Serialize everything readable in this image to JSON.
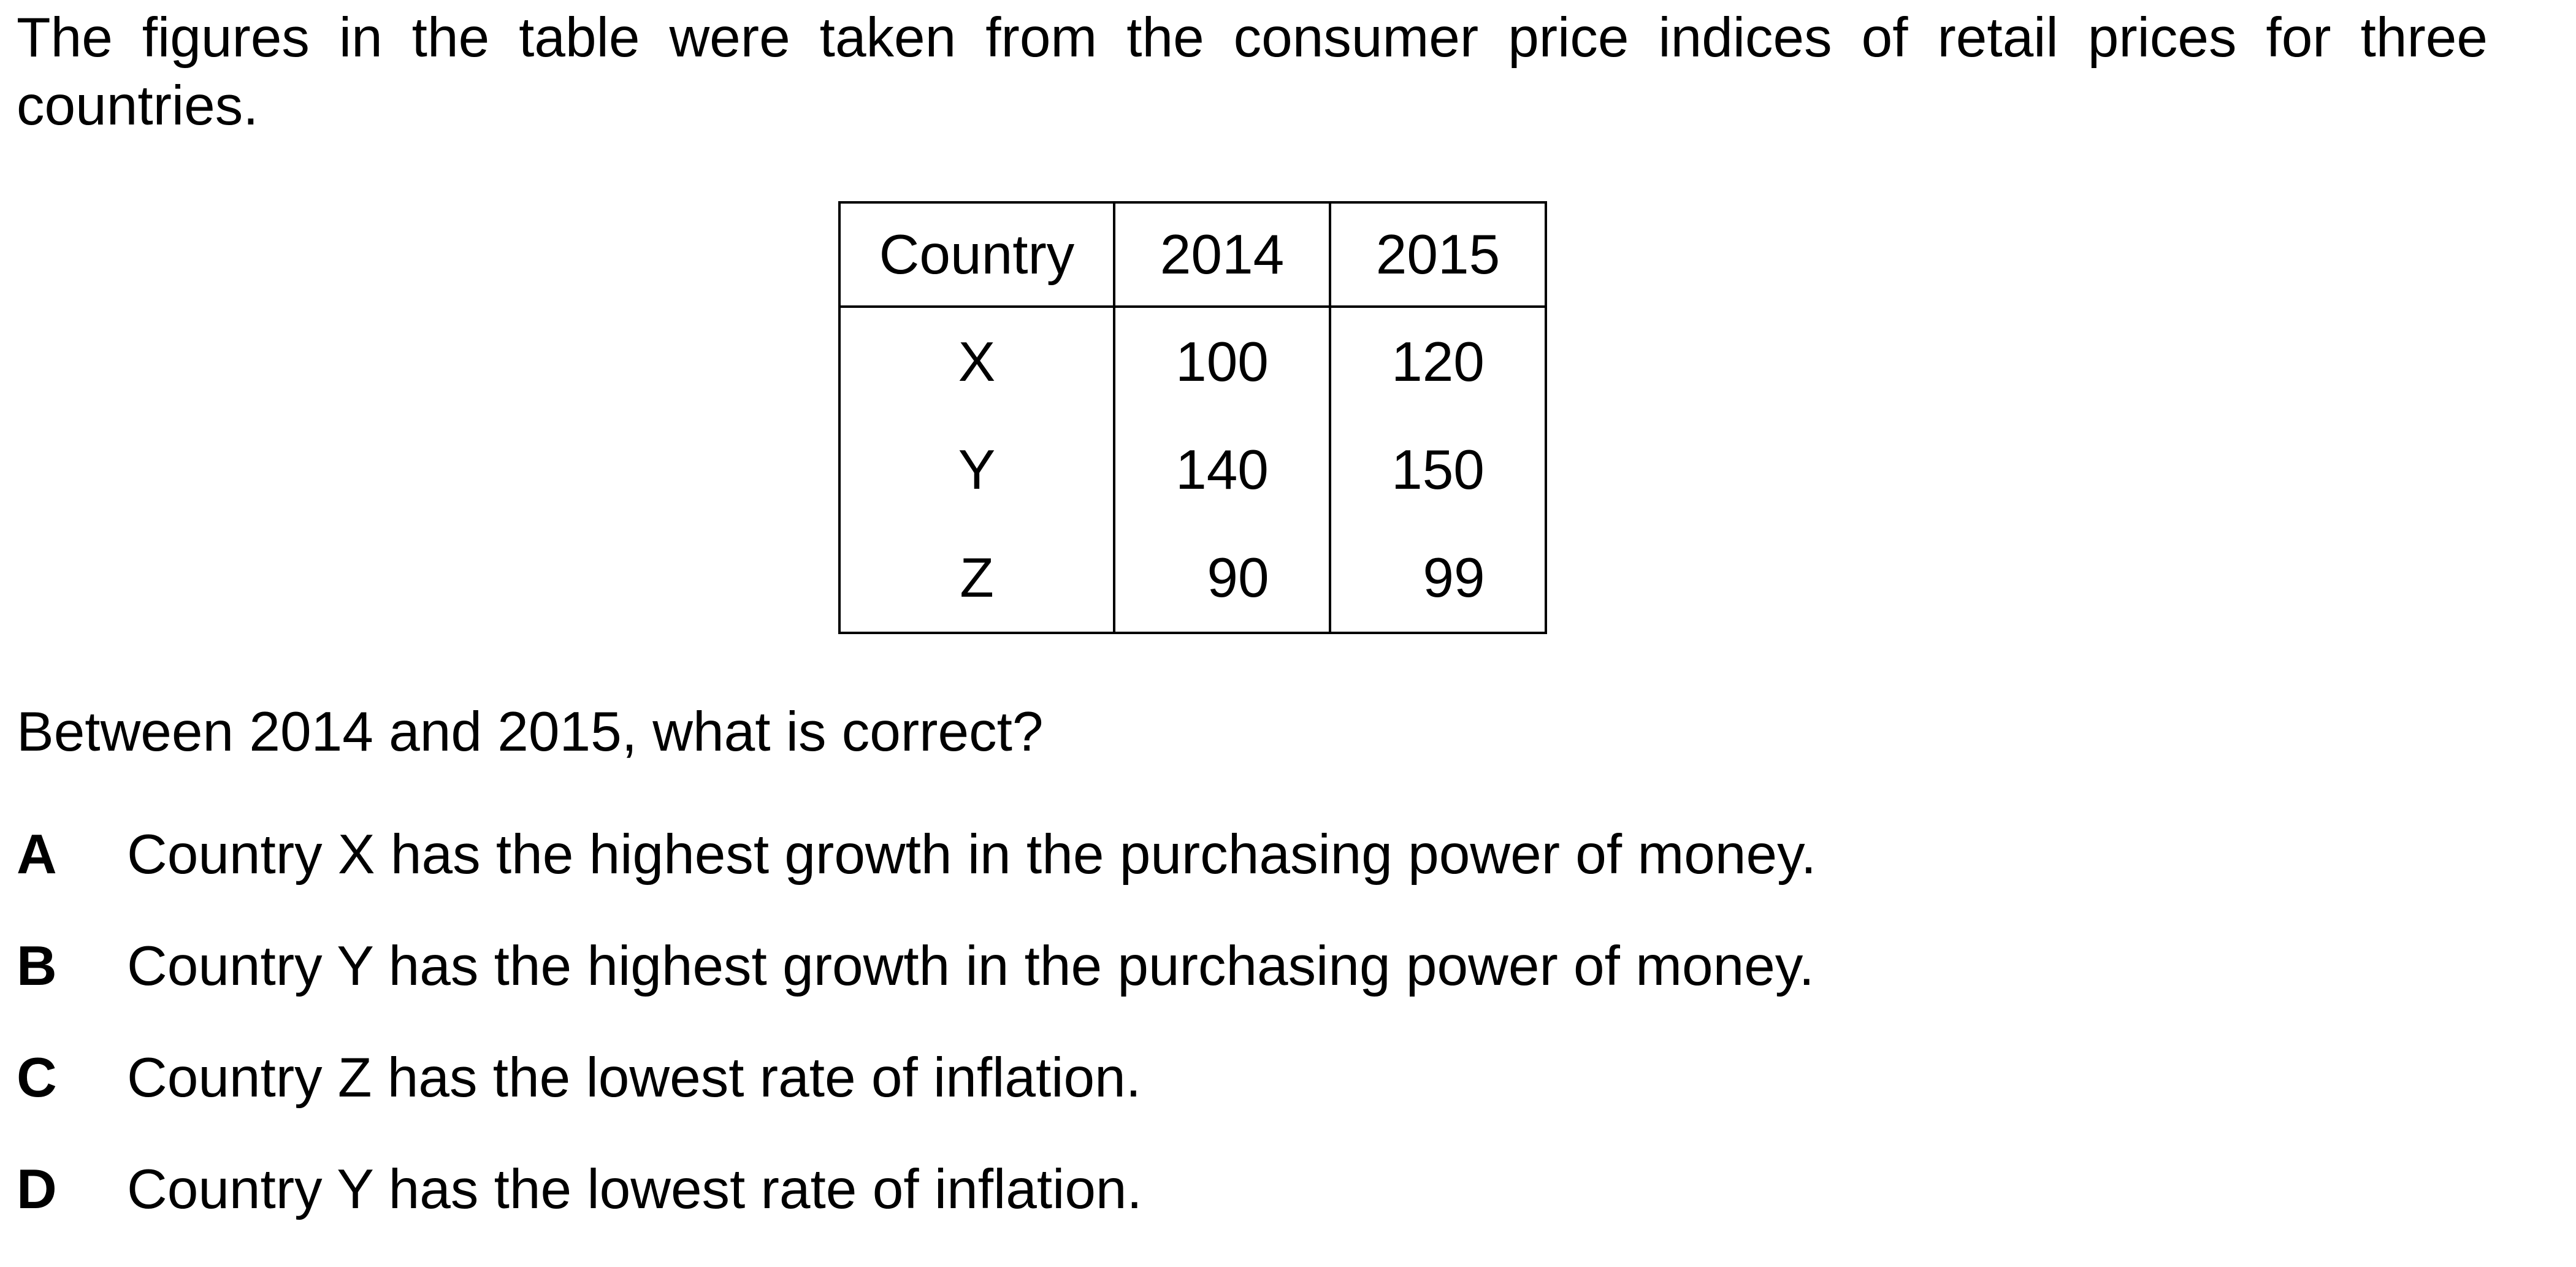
{
  "intro_text": "The figures in the table were taken from the consumer price indices of retail prices for three countries.",
  "table": {
    "headers": [
      "Country",
      "2014",
      "2015"
    ],
    "rows": [
      {
        "country": "X",
        "y2014": "100",
        "y2015": "120"
      },
      {
        "country": "Y",
        "y2014": "140",
        "y2015": "150"
      },
      {
        "country": "Z",
        "y2014": "90",
        "y2015": "99"
      }
    ]
  },
  "question": "Between 2014 and 2015, what is correct?",
  "options": [
    {
      "letter": "A",
      "text": "Country X has the highest growth in the purchasing power of money."
    },
    {
      "letter": "B",
      "text": "Country Y has the highest growth in the purchasing power of money."
    },
    {
      "letter": "C",
      "text": "Country Z has the lowest rate of inflation."
    },
    {
      "letter": "D",
      "text": "Country Y has the lowest rate of inflation."
    }
  ]
}
